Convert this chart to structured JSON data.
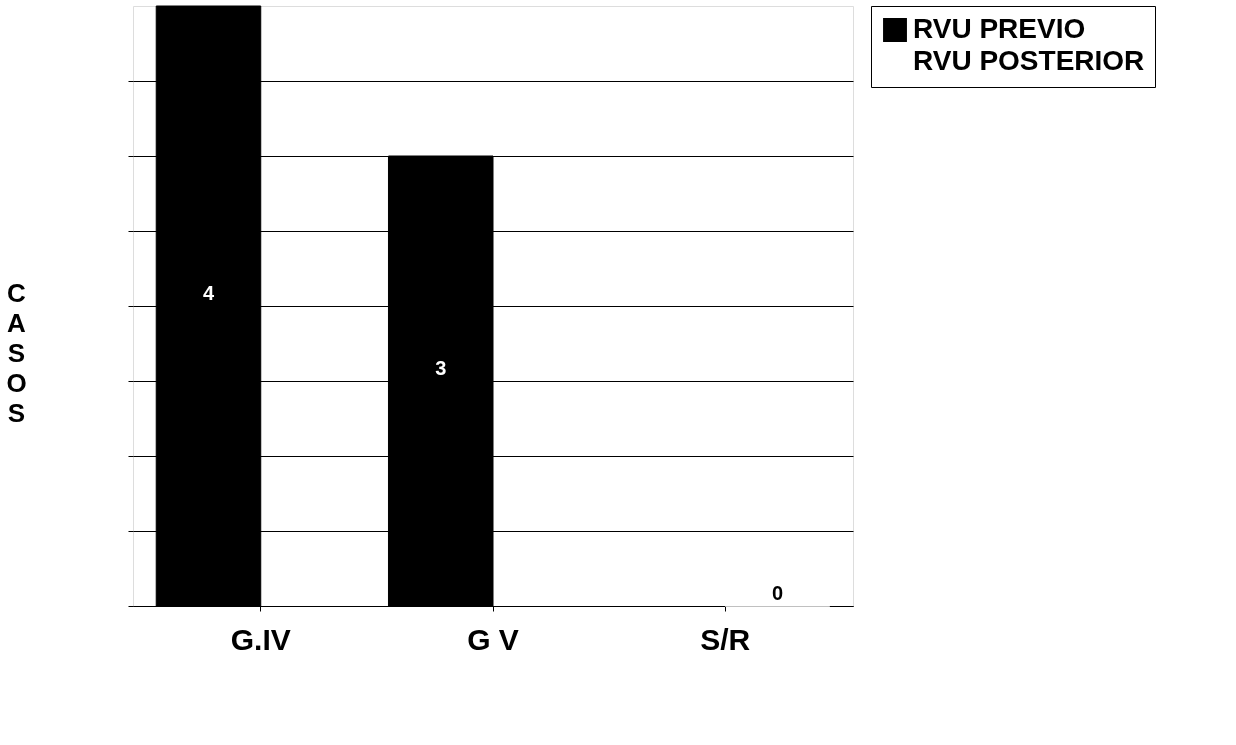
{
  "chart_data": {
    "type": "bar",
    "categories": [
      "G.IV",
      "G V",
      "S/R"
    ],
    "series": [
      {
        "name": "RVU PREVIO",
        "color": "#000000",
        "values": [
          4,
          3,
          null
        ]
      },
      {
        "name": "RVU POSTERIOR",
        "color": "#ffffff",
        "values": [
          null,
          null,
          0
        ]
      }
    ],
    "ylabel": "CASOS",
    "ylim": [
      0,
      4
    ],
    "yticks": [
      {
        "value": 0,
        "label": null
      },
      {
        "value": 0.5,
        "label": null
      },
      {
        "value": 1,
        "label": null
      },
      {
        "value": 1.5,
        "label": null
      },
      {
        "value": 2,
        "label": null
      },
      {
        "value": 2.5,
        "label": null
      },
      {
        "value": 3,
        "label": null
      },
      {
        "value": 3.5,
        "label": null
      }
    ],
    "grid": "y",
    "legend": "right",
    "data_labels": true
  }
}
